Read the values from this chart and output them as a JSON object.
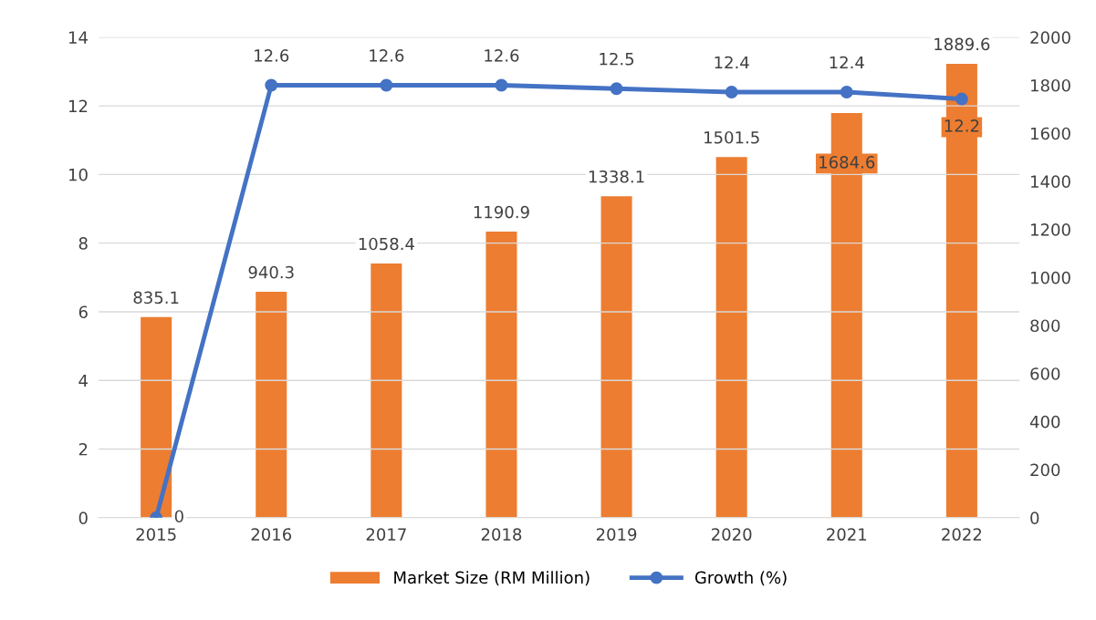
{
  "chart_data": {
    "type": "bar",
    "categories": [
      "2015",
      "2016",
      "2017",
      "2018",
      "2019",
      "2020",
      "2021",
      "2022"
    ],
    "series": [
      {
        "name": "Market Size (RM Million)",
        "type": "bar",
        "axis": "y2",
        "color": "#ed7d31",
        "values": [
          835.1,
          940.3,
          1058.4,
          1190.9,
          1338.1,
          1501.5,
          1684.6,
          1889.6
        ]
      },
      {
        "name": "Growth (%)",
        "type": "line",
        "color": "#4472c4",
        "marker": "circle",
        "values": [
          0,
          12.6,
          12.6,
          12.6,
          12.5,
          12.4,
          12.4,
          12.2
        ]
      }
    ],
    "ylim": [
      0,
      14
    ],
    "yticks": [
      0,
      2,
      4,
      6,
      8,
      10,
      12,
      14
    ],
    "y2lim": [
      0,
      2000
    ],
    "y2ticks": [
      0,
      200,
      400,
      600,
      800,
      1000,
      1200,
      1400,
      1600,
      1800,
      2000
    ],
    "grid": "y",
    "legend": "bottom",
    "data_labels": true
  }
}
